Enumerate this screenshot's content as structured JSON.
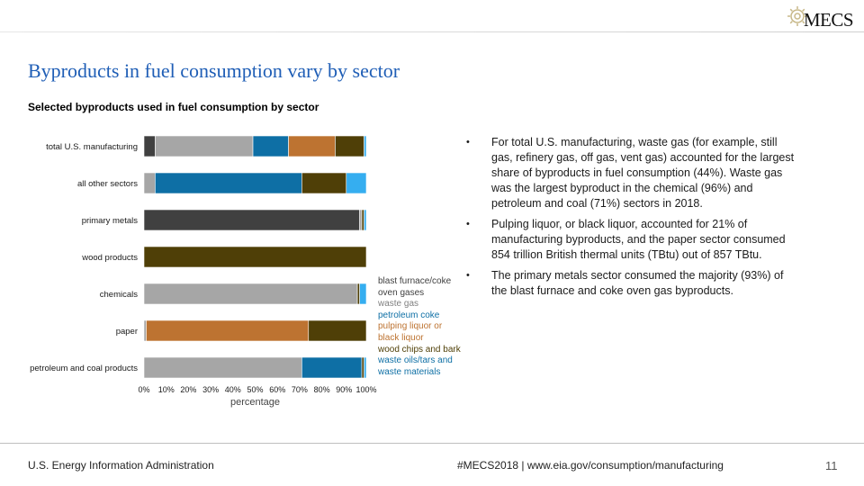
{
  "logo": {
    "text": "MECS"
  },
  "slide": {
    "title": "Byproducts in fuel consumption vary by sector",
    "subtitle": "Selected byproducts used in fuel consumption by sector"
  },
  "chart_data": {
    "type": "bar",
    "orientation": "horizontal",
    "stacked": true,
    "categories": [
      "total U.S. manufacturing",
      "all other sectors",
      "primary metals",
      "wood products",
      "chemicals",
      "paper",
      "petroleum and coal products"
    ],
    "series": [
      {
        "name": "blast furnace/coke oven gases",
        "color": "#404040",
        "values": [
          5,
          0,
          97,
          0,
          0,
          0,
          0
        ]
      },
      {
        "name": "waste gas",
        "color": "#a6a6a6",
        "values": [
          44,
          5,
          1,
          0,
          96,
          1,
          71
        ]
      },
      {
        "name": "petroleum coke",
        "color": "#0e6fa5",
        "values": [
          16,
          66,
          0,
          0,
          0,
          0,
          27
        ]
      },
      {
        "name": "pulping liquor or black liquor",
        "color": "#bd7331",
        "values": [
          21,
          0,
          0,
          0,
          0,
          73,
          0
        ]
      },
      {
        "name": "wood chips and bark",
        "color": "#4f3f07",
        "values": [
          13,
          20,
          1,
          100,
          1,
          26,
          1
        ]
      },
      {
        "name": "waste oils/tars and waste materials",
        "color": "#35aef0",
        "values": [
          1,
          9,
          1,
          0,
          3,
          0,
          1
        ]
      }
    ],
    "x_ticks": [
      "0%",
      "10%",
      "20%",
      "30%",
      "40%",
      "50%",
      "60%",
      "70%",
      "80%",
      "90%",
      "100%"
    ],
    "xlabel": "percentage",
    "xlim": [
      0,
      100
    ],
    "legend_position": "right"
  },
  "bullets": [
    "For total U.S. manufacturing, waste gas (for example, still gas, refinery gas, off gas, vent gas) accounted for the largest share of byproducts in fuel consumption (44%). Waste gas was the largest byproduct in the chemical (96%) and petroleum and coal (71%) sectors in 2018.",
    "Pulping liquor, or black liquor, accounted for 21% of manufacturing byproducts, and the paper sector consumed 854 trillion British thermal units (TBtu) out of 857 TBtu.",
    "The primary metals sector consumed the majority (93%) of the blast furnace and coke oven gas byproducts."
  ],
  "bullet_marker": "•",
  "footer": {
    "agency": "U.S. Energy Information Administration",
    "hashtag": "#MECS2018",
    "separator": " | ",
    "url": "www.eia.gov/consumption/manufacturing",
    "page": "11"
  },
  "colors": {
    "title": "#1f5eb6",
    "url": "#1f5eb6"
  }
}
